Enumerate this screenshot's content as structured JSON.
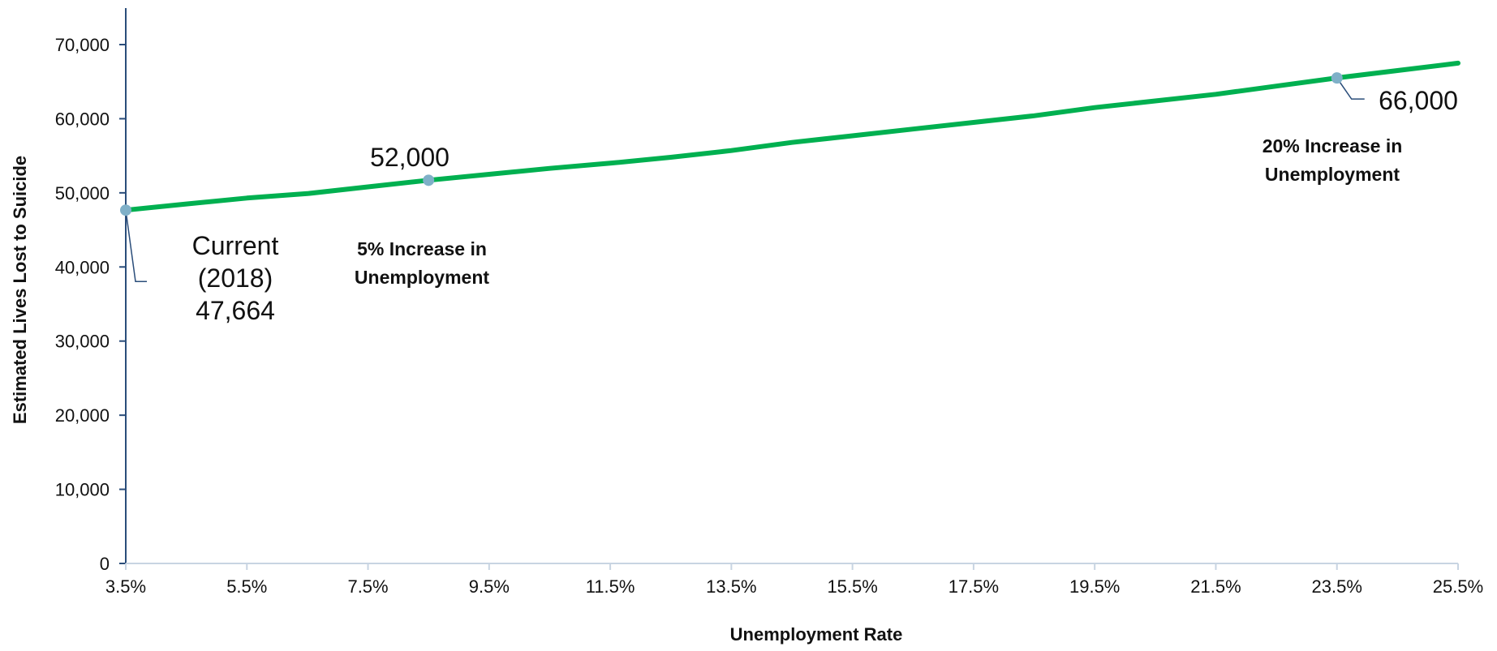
{
  "chart_data": {
    "type": "line",
    "xlabel": "Unemployment Rate",
    "ylabel": "Estimated Lives Lost to Suicide",
    "xlim": [
      3.5,
      25.5
    ],
    "ylim": [
      0,
      70000
    ],
    "x_ticks": [
      "3.5%",
      "5.5%",
      "7.5%",
      "9.5%",
      "11.5%",
      "13.5%",
      "15.5%",
      "17.5%",
      "19.5%",
      "21.5%",
      "23.5%",
      "25.5%"
    ],
    "y_ticks": [
      "0",
      "10,000",
      "20,000",
      "30,000",
      "40,000",
      "50,000",
      "60,000",
      "70,000"
    ],
    "grid": false,
    "legend": "none",
    "colors": {
      "line": "#00b050",
      "marker": "#7fb0c8",
      "axis": "#2a4d7a",
      "leader": "#2a4d7a"
    },
    "series": [
      {
        "x": [
          3.5,
          4.5,
          5.5,
          6.5,
          7.5,
          8.5,
          9.5,
          10.5,
          11.5,
          12.5,
          13.5,
          14.5,
          15.5,
          16.5,
          17.5,
          18.5,
          19.5,
          20.5,
          21.5,
          22.5,
          23.5,
          24.5,
          25.5
        ],
        "y": [
          47664,
          48500,
          49300,
          49900,
          50800,
          51700,
          52500,
          53300,
          54000,
          54800,
          55700,
          56800,
          57700,
          58600,
          59500,
          60400,
          61500,
          62400,
          63300,
          64400,
          65500,
          66500,
          67500
        ]
      }
    ],
    "highlighted_points": [
      {
        "x": 3.5,
        "y": 47664,
        "value_label": "Current\n(2018)\n47,664",
        "caption": ""
      },
      {
        "x": 8.5,
        "y": 51700,
        "value_label": "52,000",
        "caption": "5% Increase in\nUnemployment"
      },
      {
        "x": 23.5,
        "y": 65500,
        "value_label": "66,000",
        "caption": "20% Increase in\nUnemployment"
      }
    ]
  }
}
